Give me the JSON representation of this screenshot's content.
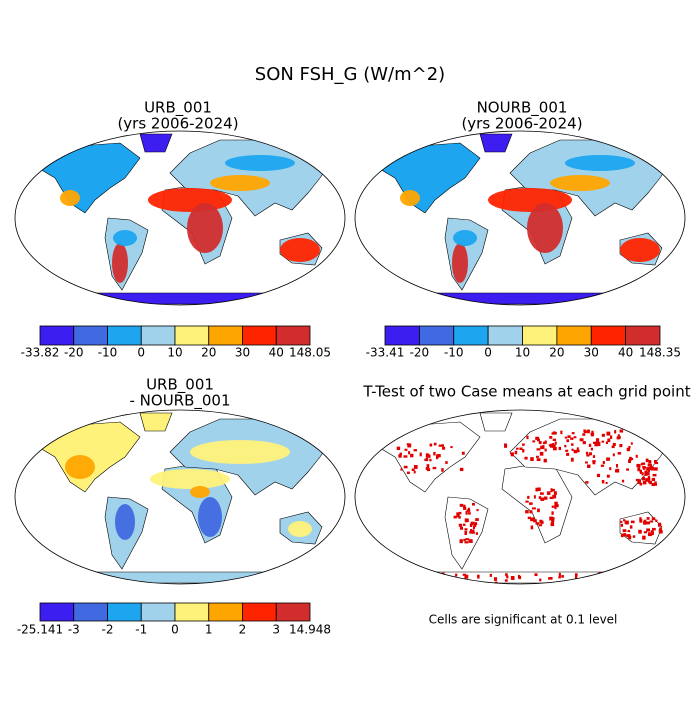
{
  "title": "SON FSH_G (W/m^2)",
  "panels": [
    {
      "title": [
        "URB_001",
        "(yrs 2006-2024)"
      ],
      "colorbar": {
        "colors": [
          "#3c1ef0",
          "#4169e1",
          "#1ea5f0",
          "#a0d2eb",
          "#fff27a",
          "#ffa500",
          "#ff2400",
          "#d22d2d"
        ],
        "labels": [
          -33.82,
          -20,
          -10,
          0,
          10,
          20,
          30,
          40,
          148.05
        ]
      }
    },
    {
      "title": [
        "NOURB_001",
        "(yrs 2006-2024)"
      ],
      "colorbar": {
        "colors": [
          "#3c1ef0",
          "#4169e1",
          "#1ea5f0",
          "#a0d2eb",
          "#fff27a",
          "#ffa500",
          "#ff2400",
          "#d22d2d"
        ],
        "labels": [
          -33.41,
          -20,
          -10,
          0,
          10,
          20,
          30,
          40,
          148.35
        ]
      }
    },
    {
      "title": [
        "URB_001",
        "- NOURB_001"
      ],
      "colorbar": {
        "colors": [
          "#3c1ef0",
          "#4169e1",
          "#1ea5f0",
          "#a0d2eb",
          "#fff27a",
          "#ffa500",
          "#ff2400",
          "#d22d2d"
        ],
        "labels": [
          -25.141,
          -3,
          -2,
          -1,
          0,
          1,
          2,
          3,
          14.948
        ]
      }
    },
    {
      "title": [
        "T-Test of two Case means at each grid point"
      ],
      "note": "Cells are significant at 0.1 level",
      "color": "#e00000"
    }
  ]
}
